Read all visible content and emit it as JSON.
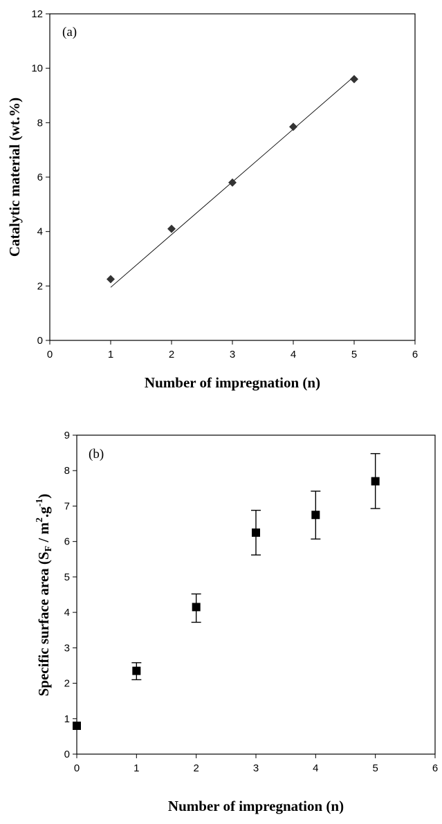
{
  "chart_data": [
    {
      "type": "scatter",
      "panel_label": "(a)",
      "xlabel": "Number of impregnation (n)",
      "ylabel": "Catalytic material (wt.%)",
      "xlim": [
        0,
        6
      ],
      "ylim": [
        0,
        12
      ],
      "xticks": [
        "0",
        "1",
        "2",
        "3",
        "4",
        "5",
        "6"
      ],
      "yticks": [
        "0",
        "2",
        "4",
        "6",
        "8",
        "10",
        "12"
      ],
      "marker": "diamond",
      "color": "#333333",
      "x": [
        1,
        2,
        3,
        4,
        5
      ],
      "y": [
        2.25,
        4.1,
        5.8,
        7.85,
        9.6
      ],
      "trendline": {
        "x": [
          1,
          5
        ],
        "y": [
          1.95,
          9.7
        ]
      },
      "grid": false
    },
    {
      "type": "scatter",
      "panel_label": "(b)",
      "xlabel": "Number of impregnation (n)",
      "ylabel": "Specific surface area (S",
      "ylabel_sub": "F",
      "ylabel_mid": " / m",
      "ylabel_sup1": "2",
      "ylabel_dot": ".g",
      "ylabel_sup2": "-1",
      "ylabel_end": ")",
      "xlim": [
        0,
        6
      ],
      "ylim": [
        0,
        9
      ],
      "xticks": [
        "0",
        "1",
        "2",
        "3",
        "4",
        "5",
        "6"
      ],
      "yticks": [
        "0",
        "1",
        "2",
        "3",
        "4",
        "5",
        "6",
        "7",
        "8",
        "9"
      ],
      "marker": "square",
      "color": "#000000",
      "x": [
        0,
        1,
        2,
        3,
        4,
        5
      ],
      "y": [
        0.8,
        2.35,
        4.15,
        6.25,
        6.75,
        7.7
      ],
      "error_low": [
        0.8,
        2.1,
        3.72,
        5.62,
        6.07,
        6.93
      ],
      "error_high": [
        0.8,
        2.58,
        4.52,
        6.88,
        7.42,
        8.48
      ],
      "grid": false
    }
  ]
}
